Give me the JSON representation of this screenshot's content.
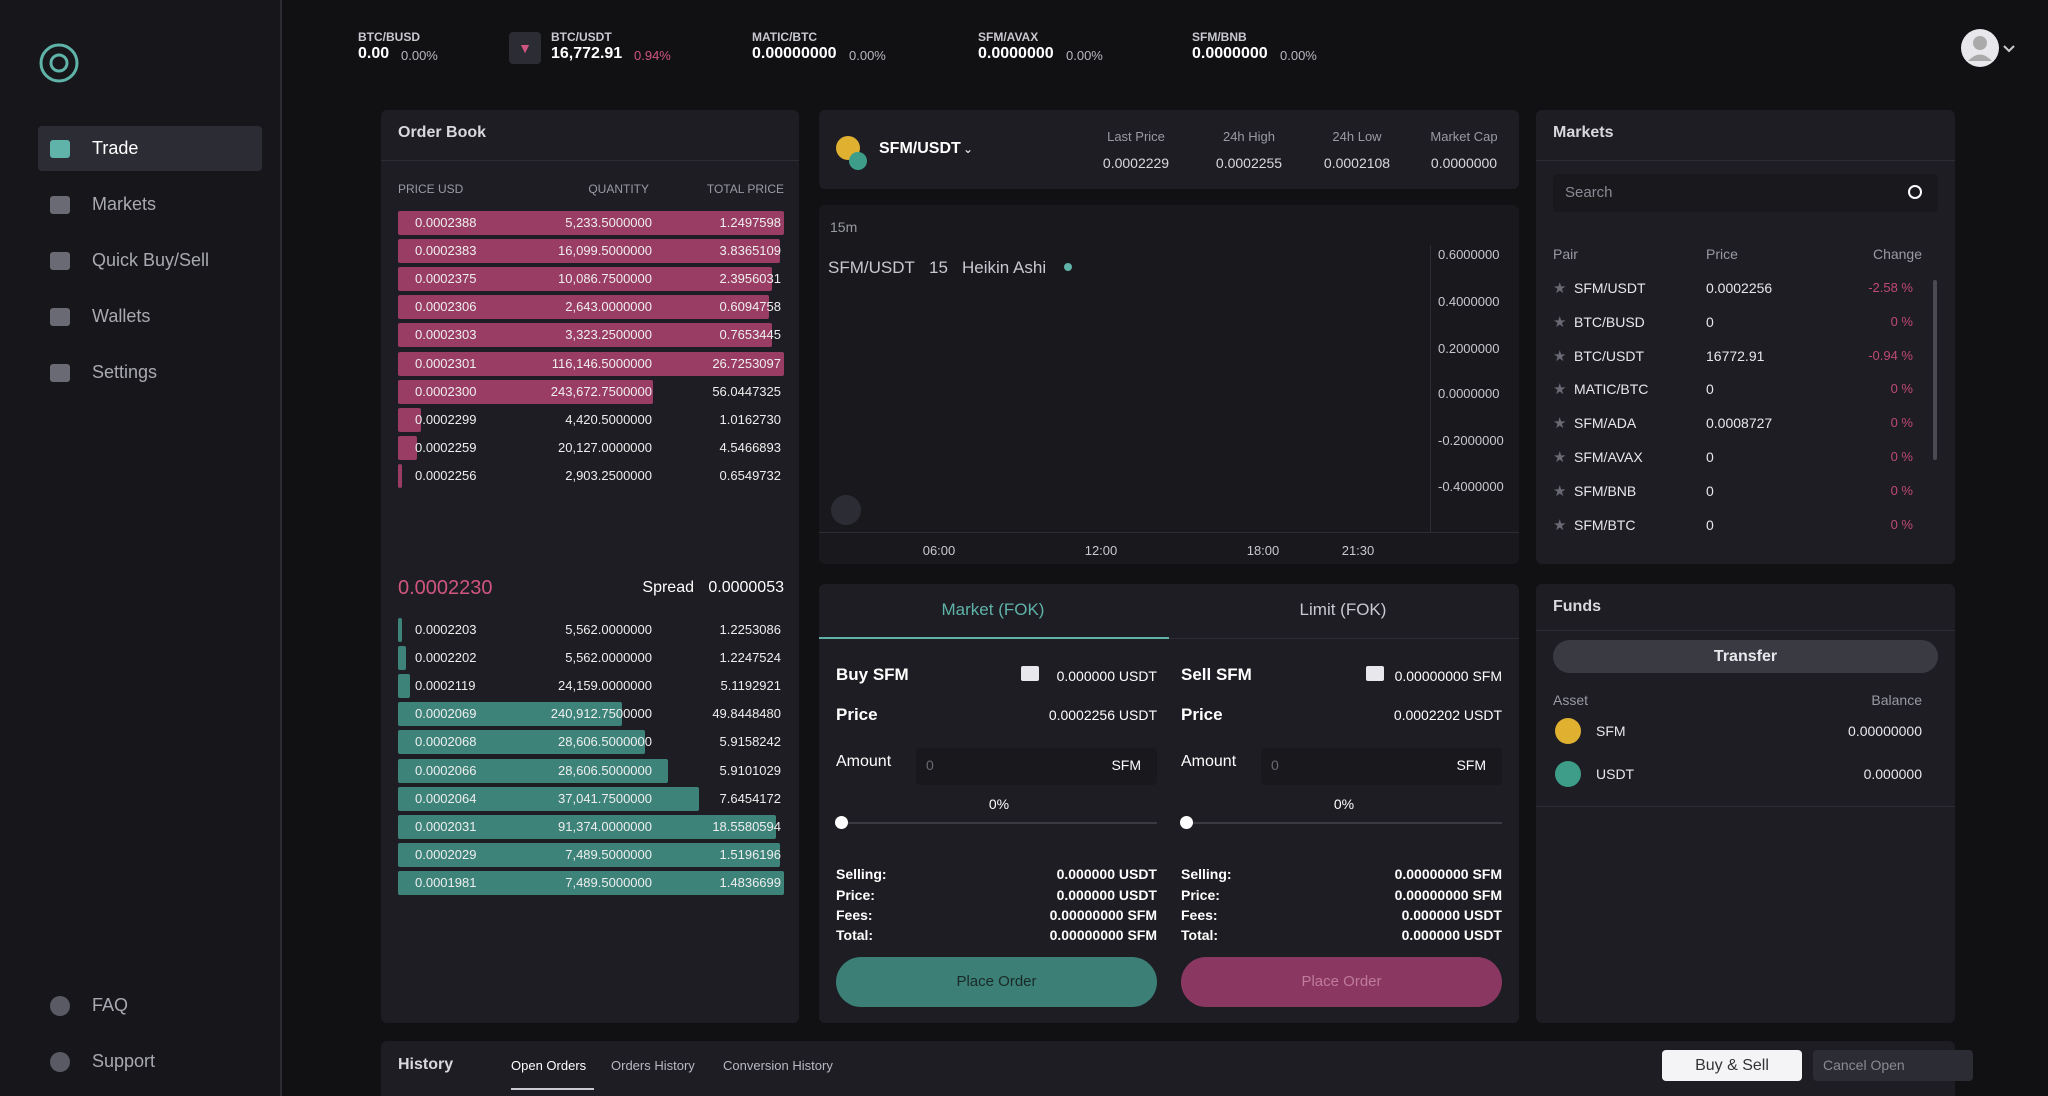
{
  "sidebar": {
    "nav": [
      "Trade",
      "Markets",
      "Quick Buy/Sell",
      "Wallets",
      "Settings"
    ],
    "footer": [
      "FAQ",
      "Support"
    ]
  },
  "tickers": [
    {
      "pair": "BTC/BUSD",
      "price": "0.00",
      "change": "0.00%"
    },
    {
      "pair": "BTC/USDT",
      "price": "16,772.91",
      "change": "0.94%"
    },
    {
      "pair": "MATIC/BTC",
      "price": "0.00000000",
      "change": "0.00%"
    },
    {
      "pair": "SFM/AVAX",
      "price": "0.0000000",
      "change": "0.00%"
    },
    {
      "pair": "SFM/BNB",
      "price": "0.0000000",
      "change": "0.00%"
    }
  ],
  "order_book": {
    "title": "Order Book",
    "columns": [
      "PRICE USD",
      "QUANTITY",
      "TOTAL PRICE"
    ],
    "asks": [
      [
        "0.0002388",
        "5,233.5000000",
        "1.2497598"
      ],
      [
        "0.0002383",
        "16,099.5000000",
        "3.8365109"
      ],
      [
        "0.0002375",
        "10,086.7500000",
        "2.3956031"
      ],
      [
        "0.0002306",
        "2,643.0000000",
        "0.6094758"
      ],
      [
        "0.0002303",
        "3,323.2500000",
        "0.7653445"
      ],
      [
        "0.0002301",
        "116,146.5000000",
        "26.7253097"
      ],
      [
        "0.0002300",
        "243,672.7500000",
        "56.0447325"
      ],
      [
        "0.0002299",
        "4,420.5000000",
        "1.0162730"
      ],
      [
        "0.0002259",
        "20,127.0000000",
        "4.5466893"
      ],
      [
        "0.0002256",
        "2,903.2500000",
        "0.6549732"
      ]
    ],
    "last_price": "0.0002230",
    "spread_label": "Spread",
    "spread": "0.0000053",
    "bids": [
      [
        "0.0002203",
        "5,562.0000000",
        "1.2253086"
      ],
      [
        "0.0002202",
        "5,562.0000000",
        "1.2247524"
      ],
      [
        "0.0002119",
        "24,159.0000000",
        "5.1192921"
      ],
      [
        "0.0002069",
        "240,912.7500000",
        "49.8448480"
      ],
      [
        "0.0002068",
        "28,606.5000000",
        "5.9158242"
      ],
      [
        "0.0002066",
        "28,606.5000000",
        "5.9101029"
      ],
      [
        "0.0002064",
        "37,041.7500000",
        "7.6454172"
      ],
      [
        "0.0002031",
        "91,374.0000000",
        "18.5580594"
      ],
      [
        "0.0002029",
        "7,489.5000000",
        "1.5196196"
      ],
      [
        "0.0001981",
        "7,489.5000000",
        "1.4836699"
      ]
    ]
  },
  "pair_header": {
    "pair": "SFM/USDT",
    "stats": [
      {
        "label": "Last Price",
        "value": "0.0002229"
      },
      {
        "label": "24h High",
        "value": "0.0002255"
      },
      {
        "label": "24h Low",
        "value": "0.0002108"
      },
      {
        "label": "Market Cap",
        "value": "0.0000000"
      }
    ]
  },
  "chart": {
    "interval": "15m",
    "legend": [
      "SFM/USDT",
      "15",
      "Heikin Ashi"
    ],
    "y_labels": [
      "0.6000000",
      "0.4000000",
      "0.2000000",
      "0.0000000",
      "-0.2000000",
      "-0.4000000"
    ],
    "x_labels": [
      "06:00",
      "12:00",
      "18:00",
      "21:30"
    ]
  },
  "order_form": {
    "tabs": [
      "Market (FOK)",
      "Limit (FOK)"
    ],
    "buy": {
      "title": "Buy SFM",
      "balance": "0.000000 USDT",
      "price_label": "Price",
      "price": "0.0002256 USDT",
      "amount_label": "Amount",
      "amount_placeholder": "0",
      "amount_unit": "SFM",
      "percent": "0%",
      "summary": [
        [
          "Selling:",
          "0.000000 USDT"
        ],
        [
          "Price:",
          "0.000000 USDT"
        ],
        [
          "Fees:",
          "0.00000000 SFM"
        ],
        [
          "Total:",
          "0.00000000 SFM"
        ]
      ],
      "button": "Place Order"
    },
    "sell": {
      "title": "Sell SFM",
      "balance": "0.00000000 SFM",
      "price_label": "Price",
      "price": "0.0002202 USDT",
      "amount_label": "Amount",
      "amount_placeholder": "0",
      "amount_unit": "SFM",
      "percent": "0%",
      "summary": [
        [
          "Selling:",
          "0.00000000 SFM"
        ],
        [
          "Price:",
          "0.00000000 SFM"
        ],
        [
          "Fees:",
          "0.000000 USDT"
        ],
        [
          "Total:",
          "0.000000 USDT"
        ]
      ],
      "button": "Place Order"
    }
  },
  "markets": {
    "title": "Markets",
    "search_placeholder": "Search",
    "columns": [
      "Pair",
      "Price",
      "Change"
    ],
    "rows": [
      [
        "SFM/USDT",
        "0.0002256",
        "-2.58 %"
      ],
      [
        "BTC/BUSD",
        "0",
        "0 %"
      ],
      [
        "BTC/USDT",
        "16772.91",
        "-0.94 %"
      ],
      [
        "MATIC/BTC",
        "0",
        "0 %"
      ],
      [
        "SFM/ADA",
        "0.0008727",
        "0 %"
      ],
      [
        "SFM/AVAX",
        "0",
        "0 %"
      ],
      [
        "SFM/BNB",
        "0",
        "0 %"
      ],
      [
        "SFM/BTC",
        "0",
        "0 %"
      ]
    ]
  },
  "funds": {
    "title": "Funds",
    "transfer": "Transfer",
    "columns": [
      "Asset",
      "Balance"
    ],
    "rows": [
      [
        "SFM",
        "0.00000000"
      ],
      [
        "USDT",
        "0.000000"
      ]
    ]
  },
  "history": {
    "title": "History",
    "tabs": [
      "Open Orders",
      "Orders History",
      "Conversion History"
    ],
    "buy_sell": "Buy & Sell",
    "cancel": "Cancel Open"
  }
}
